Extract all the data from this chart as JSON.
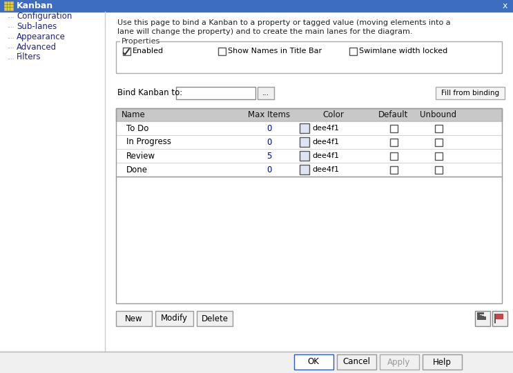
{
  "title": "Kanban",
  "title_bar_color": "#3c6dbe",
  "title_bar_text_color": "#ffffff",
  "dialog_bg": "#f0f0f0",
  "left_panel_bg": "#ffffff",
  "right_panel_bg": "#f0f0f0",
  "nav_items": [
    "Configuration",
    "Sub-lanes",
    "Appearance",
    "Advanced",
    "Filters"
  ],
  "nav_selected": "Configuration",
  "description_line1": "Use this page to bind a Kanban to a property or tagged value (moving elements into a",
  "description_line2": "lane will change the property) and to create the main lanes for the diagram.",
  "properties_label": "Properties",
  "bind_label": "Bind Kanban to:",
  "fill_button": "Fill from binding",
  "table_headers": [
    "Name",
    "Max Items",
    "Color",
    "Default",
    "Unbound"
  ],
  "table_rows": [
    {
      "name": "To Do",
      "max_items": "0",
      "color": "dee4f1",
      "default": false,
      "unbound": false
    },
    {
      "name": "In Progress",
      "max_items": "0",
      "color": "dee4f1",
      "default": false,
      "unbound": false
    },
    {
      "name": "Review",
      "max_items": "5",
      "color": "dee4f1",
      "default": false,
      "unbound": false
    },
    {
      "name": "Done",
      "max_items": "0",
      "color": "dee4f1",
      "default": false,
      "unbound": false
    }
  ],
  "buttons_left": [
    "New",
    "Modify",
    "Delete"
  ],
  "buttons_right": [
    "OK",
    "Cancel",
    "Apply",
    "Help"
  ]
}
